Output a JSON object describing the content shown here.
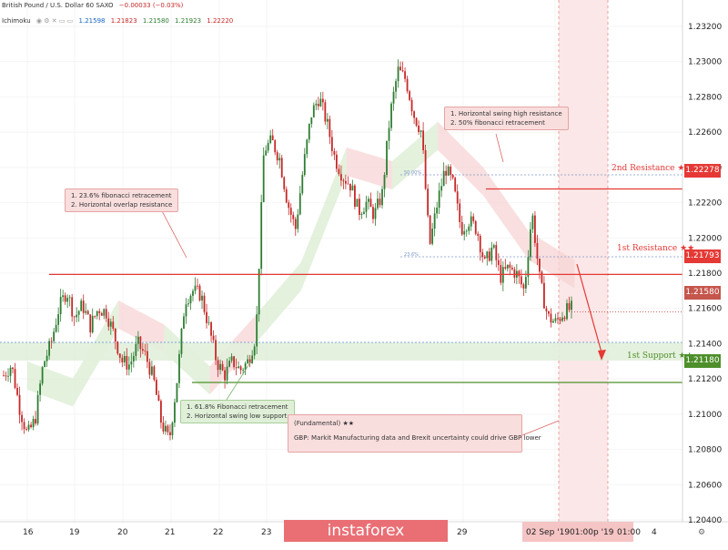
{
  "header": {
    "symbol_line": "British Pound / U.S. Dollar  60  SAXO",
    "change": "−0.00033 (−0.03%)",
    "indicator_name": "Ichimoku",
    "indicator_values": [
      "1.21598",
      "1.21823",
      "1.21580",
      "1.21923",
      "1.22220"
    ]
  },
  "colors": {
    "resistance": "#e53935",
    "support": "#4e8f2b",
    "candle_up": "#2e7d32",
    "candle_down": "#c62828",
    "cloud_red": "#f7d4d4",
    "cloud_green": "#d9ecd2",
    "current_price": "#c5564c"
  },
  "chart_data": {
    "type": "candlestick",
    "ylim": [
      1.2025,
      1.2335
    ],
    "y_ticks": [
      "1.23200",
      "1.23000",
      "1.22800",
      "1.22600",
      "1.22400",
      "1.22200",
      "1.22000",
      "1.21800",
      "1.21600",
      "1.21400",
      "1.21200",
      "1.21000",
      "1.20800",
      "1.20600",
      "1.20400"
    ],
    "x_ticks": [
      "16",
      "19",
      "20",
      "21",
      "22",
      "23",
      "29",
      "02 Sep '19",
      "01:00",
      "p '19",
      "01:00",
      "4"
    ],
    "close_path": [
      1.2122,
      1.2128,
      1.2104,
      1.2088,
      1.2097,
      1.2128,
      1.214,
      1.216,
      1.217,
      1.2155,
      1.2162,
      1.215,
      1.216,
      1.2158,
      1.2145,
      1.213,
      1.2128,
      1.214,
      1.2133,
      1.212,
      1.2095,
      1.2085,
      1.212,
      1.2165,
      1.217,
      1.2168,
      1.215,
      1.213,
      1.2122,
      1.213,
      1.2125,
      1.213,
      1.2145,
      1.225,
      1.2255,
      1.2245,
      1.222,
      1.2205,
      1.224,
      1.227,
      1.228,
      1.2265,
      1.2245,
      1.2235,
      1.223,
      1.2215,
      1.222,
      1.2213,
      1.2225,
      1.227,
      1.2295,
      1.229,
      1.227,
      1.226,
      1.2195,
      1.222,
      1.224,
      1.223,
      1.2205,
      1.221,
      1.2205,
      1.2185,
      1.2195,
      1.2178,
      1.2183,
      1.218,
      1.217,
      1.2215,
      1.2175,
      1.2155,
      1.2152,
      1.2158,
      1.216
    ],
    "levels": [
      {
        "label": "2nd Resistance",
        "value": "1.22278",
        "price": 1.22278
      },
      {
        "label": "1st Resistance",
        "value": "1.21793",
        "price": 1.21793
      },
      {
        "label": "1st Support",
        "value": "1.21180",
        "price": 1.2118
      }
    ],
    "current_price": {
      "value": "1.21580",
      "price": 1.2158
    },
    "fib_markers": [
      {
        "label": "50.00%",
        "price": 1.22278
      },
      {
        "label": "23.6%",
        "price": 1.21793
      }
    ],
    "annotations": {
      "swing_high": [
        "1. Horizontal swing high resistance",
        "2. 50% fibonacci retracement"
      ],
      "overlap": [
        "1. 23.6% fibonacci retracement",
        "2. Horizontal overlap resistance"
      ],
      "support": [
        "1. 61.8% Fibonacci retracement",
        "2. Horizontal swing low support"
      ],
      "fundamental_title": "(Fundamental) ★★",
      "fundamental_text": "GBP: Markit Manufacturing data and Brexit uncertainty could drive GBP lower"
    }
  },
  "watermark": "instaforex",
  "stars": "★★"
}
